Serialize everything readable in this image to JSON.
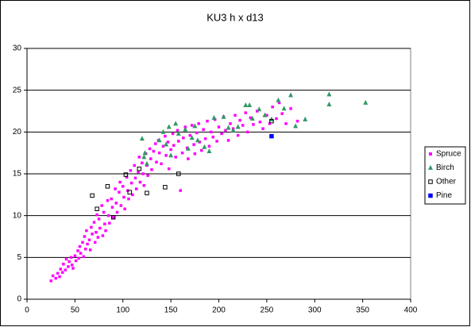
{
  "chart_data": {
    "type": "scatter",
    "title": "KU3 h x d13",
    "xlim": [
      0,
      400
    ],
    "xticks": [
      0,
      50,
      100,
      150,
      200,
      250,
      300,
      350,
      400
    ],
    "ylim": [
      0,
      30
    ],
    "yticks": [
      0,
      5,
      10,
      15,
      20,
      25,
      30
    ],
    "grid": true,
    "legend": "right",
    "series": [
      {
        "name": "Spruce",
        "color": "#ff00ff",
        "marker": "square",
        "filled": true,
        "x": [
          25,
          27,
          30,
          32,
          34,
          35,
          37,
          38,
          40,
          41,
          43,
          44,
          46,
          47,
          48,
          50,
          51,
          53,
          54,
          55,
          56,
          58,
          59,
          60,
          61,
          62,
          63,
          65,
          66,
          67,
          68,
          70,
          71,
          72,
          73,
          74,
          75,
          76,
          78,
          79,
          80,
          81,
          82,
          84,
          85,
          86,
          88,
          89,
          90,
          92,
          93,
          94,
          96,
          97,
          98,
          100,
          101,
          102,
          104,
          105,
          106,
          108,
          109,
          110,
          112,
          113,
          114,
          116,
          117,
          118,
          120,
          121,
          122,
          124,
          125,
          126,
          128,
          129,
          130,
          132,
          134,
          135,
          137,
          138,
          140,
          142,
          144,
          145,
          147,
          148,
          150,
          152,
          153,
          155,
          157,
          158,
          160,
          162,
          163,
          165,
          167,
          168,
          170,
          172,
          174,
          175,
          177,
          179,
          180,
          182,
          184,
          186,
          188,
          190,
          192,
          194,
          196,
          198,
          200,
          203,
          205,
          207,
          210,
          212,
          215,
          217,
          220,
          222,
          225,
          228,
          230,
          233,
          236,
          240,
          243,
          246,
          250,
          253,
          256,
          260,
          263,
          266,
          270,
          275,
          282
        ],
        "values": [
          2.2,
          2.8,
          2.5,
          3.1,
          2.7,
          3.6,
          3.2,
          4.2,
          3.5,
          4.8,
          3.9,
          4.5,
          5.0,
          4.1,
          3.7,
          5.2,
          4.6,
          5.8,
          4.9,
          6.3,
          5.5,
          6.8,
          5.1,
          7.5,
          6.0,
          8.2,
          6.6,
          7.1,
          5.9,
          8.6,
          7.8,
          9.2,
          6.8,
          8.0,
          10.1,
          7.4,
          9.6,
          8.5,
          11.2,
          7.6,
          10.4,
          9.0,
          8.2,
          11.8,
          10.0,
          9.1,
          12.0,
          11.0,
          9.8,
          13.2,
          11.5,
          10.4,
          12.8,
          14.0,
          11.2,
          13.5,
          12.2,
          10.8,
          14.6,
          13.0,
          12.0,
          15.4,
          13.9,
          12.5,
          16.0,
          14.5,
          13.2,
          15.2,
          17.0,
          14.0,
          16.3,
          15.0,
          13.6,
          17.4,
          16.0,
          14.8,
          18.0,
          16.8,
          15.5,
          17.7,
          18.6,
          16.4,
          19.0,
          17.5,
          16.2,
          18.3,
          19.5,
          17.2,
          18.8,
          15.6,
          17.9,
          19.8,
          18.4,
          17.0,
          20.2,
          18.9,
          13.0,
          17.5,
          19.3,
          20.6,
          18.1,
          16.8,
          19.6,
          20.8,
          18.5,
          17.4,
          19.9,
          21.0,
          18.8,
          17.8,
          20.3,
          19.2,
          21.3,
          18.3,
          20.0,
          19.4,
          21.5,
          18.9,
          20.6,
          19.8,
          21.8,
          20.2,
          19.0,
          21.0,
          20.4,
          22.0,
          19.6,
          21.4,
          20.8,
          22.3,
          20.0,
          21.7,
          20.9,
          22.5,
          21.2,
          20.4,
          22.0,
          21.0,
          23.0,
          21.6,
          23.5,
          22.2,
          21.0,
          22.8,
          21.3
        ]
      },
      {
        "name": "Birch",
        "color": "#339966",
        "marker": "triangle",
        "filled": true,
        "x": [
          120,
          122,
          123,
          125,
          138,
          142,
          145,
          148,
          150,
          155,
          158,
          165,
          168,
          172,
          175,
          178,
          185,
          190,
          195,
          205,
          210,
          215,
          220,
          228,
          232,
          235,
          242,
          248,
          255,
          262,
          268,
          275,
          280,
          290,
          315,
          315,
          353
        ],
        "values": [
          19.2,
          17.0,
          17.5,
          16.2,
          19.0,
          20.0,
          18.5,
          20.6,
          17.2,
          21.0,
          19.8,
          20.3,
          18.0,
          19.3,
          20.7,
          19.0,
          18.2,
          17.7,
          21.7,
          21.8,
          20.5,
          20.2,
          20.6,
          23.2,
          23.2,
          21.6,
          22.7,
          22.0,
          21.5,
          23.8,
          22.8,
          24.4,
          20.7,
          21.5,
          23.3,
          24.5,
          23.5
        ]
      },
      {
        "name": "Other",
        "color": "#000000",
        "marker": "square",
        "filled": false,
        "x": [
          68,
          73,
          84,
          90,
          103,
          107,
          117,
          125,
          144,
          158,
          255
        ],
        "values": [
          12.4,
          10.8,
          13.5,
          9.8,
          14.9,
          12.8,
          15.6,
          12.7,
          13.4,
          15.0,
          21.3
        ]
      },
      {
        "name": "Pine",
        "color": "#0000ff",
        "marker": "square",
        "filled": true,
        "x": [
          255
        ],
        "values": [
          19.5
        ]
      }
    ]
  }
}
